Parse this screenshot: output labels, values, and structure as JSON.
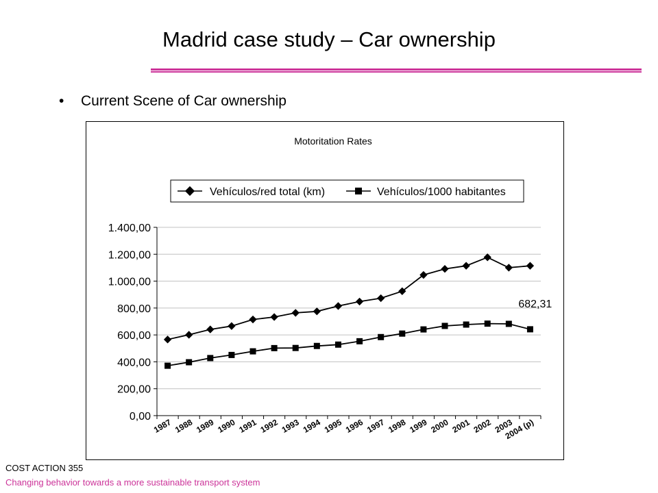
{
  "slide": {
    "title": "Madrid case study – Car ownership",
    "bullet": "Current Scene of Car ownership",
    "footer_line1": "COST ACTION 355",
    "footer_line2": "Changing behavior towards a more sustainable transport system",
    "accent_color": "#cc3399"
  },
  "chart_data": {
    "type": "line",
    "title": "Motoritation Rates",
    "categories": [
      "1987",
      "1988",
      "1989",
      "1990",
      "1991",
      "1992",
      "1993",
      "1994",
      "1995",
      "1996",
      "1997",
      "1998",
      "1999",
      "2000",
      "2001",
      "2002",
      "2003",
      "2004 (p)"
    ],
    "series": [
      {
        "name": "Vehículos/red total (km)",
        "marker": "diamond",
        "values": [
          566,
          601,
          641,
          666,
          715,
          733,
          764,
          775,
          815,
          848,
          873,
          925,
          1046,
          1091,
          1114,
          1177,
          1100,
          1114
        ]
      },
      {
        "name": "Vehículos/1000 habitantes",
        "marker": "square",
        "values": [
          371,
          397,
          428,
          451,
          478,
          502,
          503,
          518,
          528,
          553,
          584,
          610,
          641,
          667,
          677,
          684,
          682.31,
          642
        ]
      }
    ],
    "annotation": {
      "text": "682,31",
      "series": 1,
      "index": 16
    },
    "yticks": [
      "0,00",
      "200,00",
      "400,00",
      "600,00",
      "800,00",
      "1.000,00",
      "1.200,00",
      "1.400,00"
    ],
    "ylim": [
      0,
      1400
    ],
    "grid": true,
    "legend_position": "top"
  }
}
